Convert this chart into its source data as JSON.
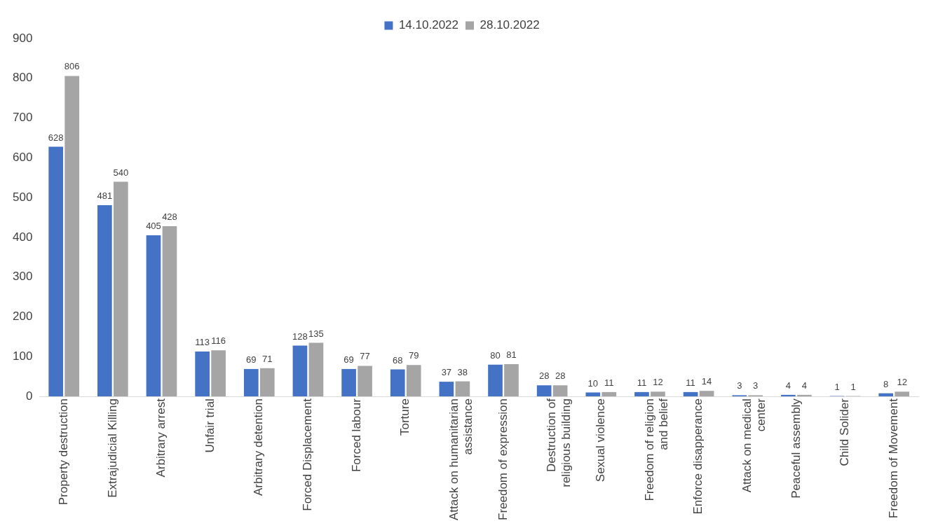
{
  "chart_data": {
    "type": "bar",
    "categories": [
      "Property destruction",
      "Extrajudicial Killing",
      "Arbitrary arrest",
      "Unfair trial",
      "Arbitrary detention",
      "Forced Displacement",
      "Forced labour",
      "Torture",
      "Attack on humanitarian assistance",
      "Freedom of expression",
      "Destruction of religious building",
      "Sexual violence",
      "Freedom of religion and belief",
      "Enforce disapperance",
      "Attack on medical center",
      "Peaceful assembly",
      "Child Solider",
      "Freedom of Movement"
    ],
    "series": [
      {
        "name": "14.10.2022",
        "color": "#4472c4",
        "values": [
          628,
          481,
          405,
          113,
          69,
          128,
          69,
          68,
          37,
          80,
          28,
          10,
          11,
          11,
          3,
          4,
          1,
          8
        ]
      },
      {
        "name": "28.10.2022",
        "color": "#a5a5a5",
        "values": [
          806,
          540,
          428,
          116,
          71,
          135,
          77,
          79,
          38,
          81,
          28,
          11,
          12,
          14,
          3,
          4,
          1,
          12
        ]
      }
    ],
    "ylim": [
      0,
      900
    ],
    "yticks": [
      0,
      100,
      200,
      300,
      400,
      500,
      600,
      700,
      800,
      900
    ],
    "grid": false,
    "legend": "top",
    "data_labels": true
  }
}
